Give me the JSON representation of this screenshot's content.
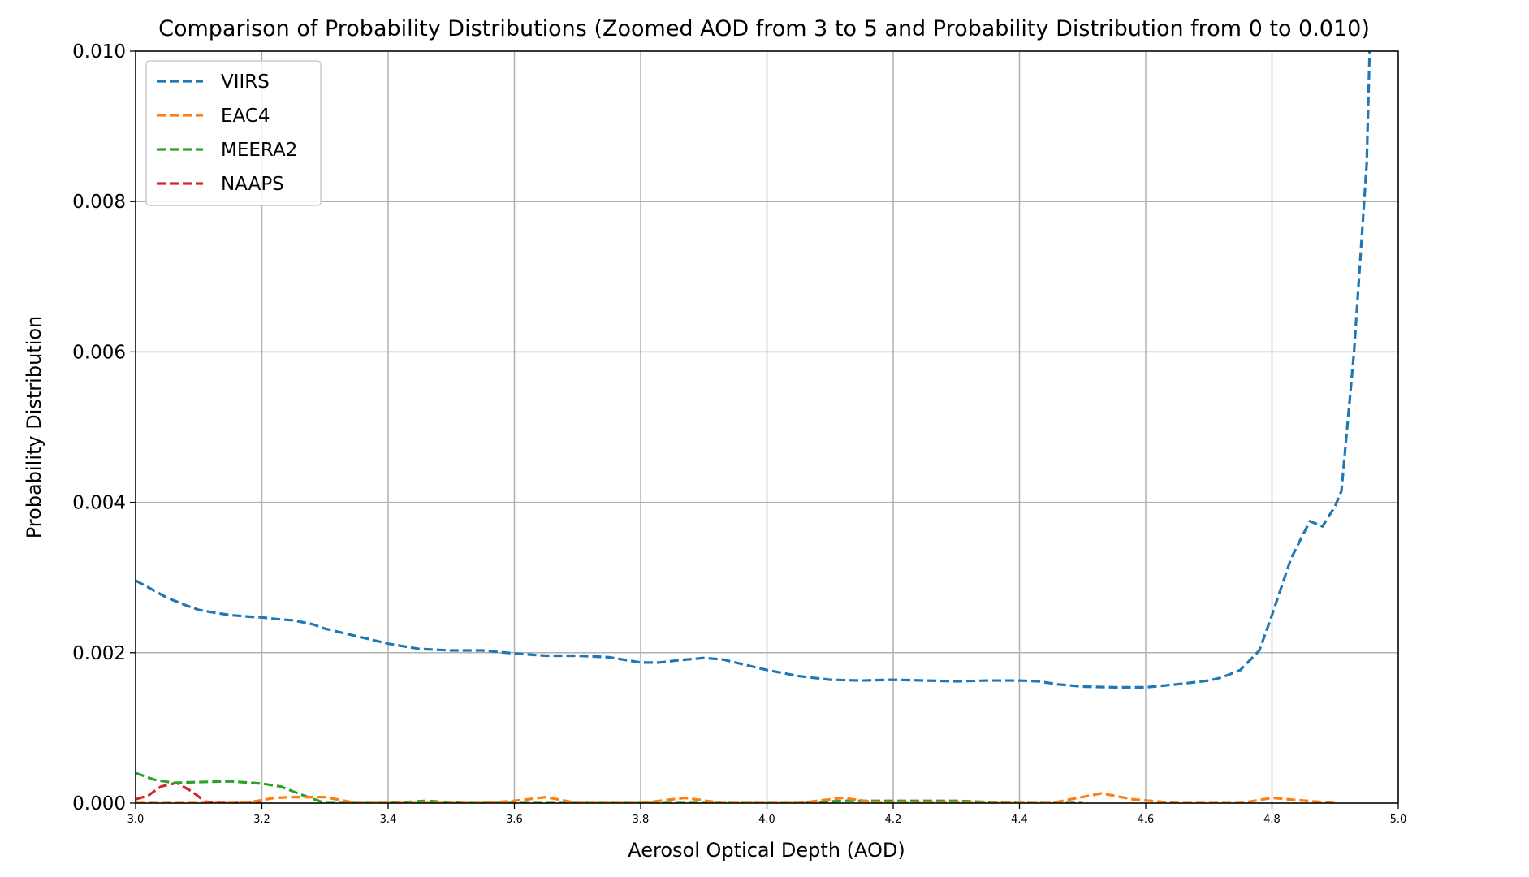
{
  "chart_data": {
    "type": "line",
    "title": "Comparison of Probability Distributions (Zoomed AOD from 3 to 5 and Probability Distribution from 0 to 0.010)",
    "xlabel": "Aerosol Optical Depth (AOD)",
    "ylabel": "Probability Distribution",
    "xlim": [
      3.0,
      5.0
    ],
    "ylim": [
      0.0,
      0.01
    ],
    "xticks": [
      "3.0",
      "3.2",
      "3.4",
      "3.6",
      "3.8",
      "4.0",
      "4.2",
      "4.4",
      "4.6",
      "4.8",
      "5.0"
    ],
    "yticks": [
      "0.000",
      "0.002",
      "0.004",
      "0.006",
      "0.008",
      "0.010"
    ],
    "grid": true,
    "legend_position": "top-left",
    "line_style": "dashed",
    "series": [
      {
        "name": "VIIRS",
        "color": "#1f77b4",
        "x": [
          3.0,
          3.02,
          3.05,
          3.08,
          3.1,
          3.12,
          3.15,
          3.18,
          3.2,
          3.22,
          3.25,
          3.28,
          3.3,
          3.35,
          3.4,
          3.45,
          3.5,
          3.55,
          3.6,
          3.65,
          3.7,
          3.75,
          3.8,
          3.83,
          3.86,
          3.9,
          3.93,
          3.96,
          4.0,
          4.05,
          4.1,
          4.15,
          4.2,
          4.25,
          4.3,
          4.35,
          4.4,
          4.43,
          4.46,
          4.5,
          4.55,
          4.6,
          4.65,
          4.7,
          4.72,
          4.75,
          4.78,
          4.8,
          4.83,
          4.86,
          4.88,
          4.9,
          4.91,
          4.93,
          4.95,
          4.955
        ],
        "values": [
          0.00296,
          0.00287,
          0.00273,
          0.00263,
          0.00257,
          0.00254,
          0.0025,
          0.00248,
          0.00247,
          0.00245,
          0.00243,
          0.00238,
          0.00232,
          0.00222,
          0.00212,
          0.00205,
          0.00203,
          0.00203,
          0.00199,
          0.00196,
          0.00196,
          0.00194,
          0.00187,
          0.00187,
          0.0019,
          0.00193,
          0.00191,
          0.00185,
          0.00177,
          0.00169,
          0.00164,
          0.00163,
          0.00164,
          0.00163,
          0.00162,
          0.00163,
          0.00163,
          0.00162,
          0.00158,
          0.00155,
          0.00154,
          0.00154,
          0.00158,
          0.00163,
          0.00167,
          0.00177,
          0.00203,
          0.0025,
          0.00325,
          0.00375,
          0.00368,
          0.00395,
          0.00415,
          0.006,
          0.0085,
          0.0101
        ]
      },
      {
        "name": "EAC4",
        "color": "#ff7f0e",
        "x": [
          3.0,
          3.1,
          3.15,
          3.18,
          3.22,
          3.25,
          3.3,
          3.35,
          3.55,
          3.6,
          3.65,
          3.7,
          3.8,
          3.87,
          3.93,
          4.05,
          4.12,
          4.18,
          4.45,
          4.53,
          4.58,
          4.65,
          4.75,
          4.8,
          4.84,
          4.9
        ],
        "values": [
          0.0,
          0.0,
          0.0,
          1e-05,
          7e-05,
          8e-05,
          8e-05,
          0.0,
          0.0,
          3e-05,
          8e-05,
          0.0,
          0.0,
          7e-05,
          0.0,
          0.0,
          7e-05,
          0.0,
          0.0,
          0.00013,
          5e-05,
          0.0,
          0.0,
          7e-05,
          4e-05,
          0.0
        ]
      },
      {
        "name": "MEERA2",
        "color": "#2ca02c",
        "x": [
          3.0,
          3.03,
          3.06,
          3.1,
          3.15,
          3.2,
          3.23,
          3.26,
          3.3,
          3.35,
          3.4,
          3.46,
          3.52,
          4.05,
          4.12,
          4.2,
          4.3,
          4.4,
          4.5
        ],
        "values": [
          0.0004,
          0.00031,
          0.00027,
          0.00028,
          0.00029,
          0.00026,
          0.00022,
          0.00012,
          0.0,
          0.0,
          0.0,
          3e-05,
          0.0,
          0.0,
          3e-05,
          3e-05,
          3e-05,
          0.0,
          0.0
        ]
      },
      {
        "name": "NAAPS",
        "color": "#d62728",
        "x": [
          3.0,
          3.02,
          3.04,
          3.065,
          3.09,
          3.11,
          3.14,
          3.2
        ],
        "values": [
          5e-05,
          0.0001,
          0.00022,
          0.00027,
          0.00015,
          2e-05,
          0.0,
          0.0
        ]
      }
    ]
  }
}
